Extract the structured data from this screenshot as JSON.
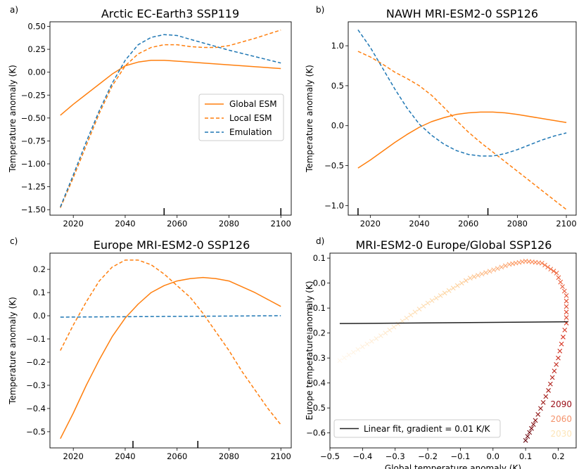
{
  "chart_data": [
    {
      "panel": "a)",
      "type": "line",
      "title": "Arctic EC-Earth3 SSP119",
      "xlabel": "",
      "ylabel": "Temperature anomaly (K)",
      "xlim": [
        2011,
        2104
      ],
      "ylim": [
        -1.56,
        0.55
      ],
      "xticks": [
        2020,
        2040,
        2060,
        2080,
        2100
      ],
      "yticks": [
        -1.5,
        -1.25,
        -1.0,
        -0.75,
        -0.5,
        -0.25,
        0.0,
        0.25,
        0.5
      ],
      "ytick_labels": [
        "−1.50",
        "−1.25",
        "−1.00",
        "−0.75",
        "−0.50",
        "−0.25",
        "0.00",
        "0.25",
        "0.50"
      ],
      "legend": {
        "placement": "center-right",
        "entries": [
          "Global ESM",
          "Local ESM",
          "Emulation"
        ]
      },
      "markers": [
        2055,
        2100
      ],
      "series": [
        {
          "name": "Global ESM",
          "color": "#ff7f0e",
          "dash": "solid",
          "x": [
            2015,
            2020,
            2025,
            2030,
            2035,
            2040,
            2045,
            2050,
            2055,
            2060,
            2065,
            2070,
            2080,
            2090,
            2100
          ],
          "y": [
            -0.47,
            -0.35,
            -0.24,
            -0.13,
            -0.02,
            0.07,
            0.11,
            0.13,
            0.13,
            0.12,
            0.11,
            0.1,
            0.08,
            0.06,
            0.04
          ]
        },
        {
          "name": "Local ESM",
          "color": "#ff7f0e",
          "dash": "dashed",
          "x": [
            2015,
            2020,
            2025,
            2030,
            2035,
            2040,
            2045,
            2050,
            2055,
            2060,
            2065,
            2070,
            2075,
            2080,
            2090,
            2100
          ],
          "y": [
            -1.48,
            -1.15,
            -0.8,
            -0.45,
            -0.15,
            0.07,
            0.2,
            0.27,
            0.3,
            0.3,
            0.28,
            0.27,
            0.27,
            0.29,
            0.37,
            0.46
          ]
        },
        {
          "name": "Emulation",
          "color": "#1f77b4",
          "dash": "dashed",
          "x": [
            2015,
            2020,
            2025,
            2030,
            2035,
            2040,
            2045,
            2050,
            2055,
            2060,
            2065,
            2070,
            2080,
            2090,
            2100
          ],
          "y": [
            -1.47,
            -1.12,
            -0.76,
            -0.42,
            -0.12,
            0.13,
            0.3,
            0.38,
            0.41,
            0.4,
            0.36,
            0.32,
            0.24,
            0.17,
            0.1
          ]
        }
      ]
    },
    {
      "panel": "b)",
      "type": "line",
      "title": "NAWH MRI-ESM2-0 SSP126",
      "xlabel": "",
      "ylabel": "Temperature anomaly (K)",
      "xlim": [
        2011,
        2104
      ],
      "ylim": [
        -1.12,
        1.3
      ],
      "xticks": [
        2020,
        2040,
        2060,
        2080,
        2100
      ],
      "yticks": [
        -1.0,
        -0.5,
        0.0,
        0.5,
        1.0
      ],
      "ytick_labels": [
        "−1.0",
        "−0.5",
        "0.0",
        "0.5",
        "1.0"
      ],
      "markers": [
        2015,
        2068
      ],
      "series": [
        {
          "name": "Global ESM",
          "color": "#ff7f0e",
          "dash": "solid",
          "x": [
            2015,
            2020,
            2025,
            2030,
            2035,
            2040,
            2045,
            2050,
            2055,
            2060,
            2065,
            2070,
            2075,
            2080,
            2090,
            2100
          ],
          "y": [
            -0.53,
            -0.43,
            -0.32,
            -0.21,
            -0.11,
            -0.02,
            0.05,
            0.1,
            0.14,
            0.16,
            0.17,
            0.17,
            0.16,
            0.14,
            0.09,
            0.04
          ]
        },
        {
          "name": "Local ESM",
          "color": "#ff7f0e",
          "dash": "dashed",
          "x": [
            2015,
            2020,
            2025,
            2030,
            2035,
            2040,
            2045,
            2050,
            2055,
            2060,
            2065,
            2070,
            2075,
            2080,
            2085,
            2090,
            2095,
            2100
          ],
          "y": [
            0.93,
            0.86,
            0.77,
            0.67,
            0.59,
            0.5,
            0.38,
            0.23,
            0.07,
            -0.08,
            -0.21,
            -0.33,
            -0.45,
            -0.57,
            -0.69,
            -0.81,
            -0.93,
            -1.05
          ]
        },
        {
          "name": "Emulation",
          "color": "#1f77b4",
          "dash": "dashed",
          "x": [
            2015,
            2020,
            2025,
            2030,
            2035,
            2040,
            2045,
            2050,
            2055,
            2060,
            2065,
            2070,
            2075,
            2080,
            2085,
            2090,
            2095,
            2100
          ],
          "y": [
            1.2,
            0.98,
            0.72,
            0.46,
            0.22,
            0.02,
            -0.12,
            -0.23,
            -0.31,
            -0.36,
            -0.38,
            -0.38,
            -0.35,
            -0.3,
            -0.24,
            -0.18,
            -0.13,
            -0.09
          ]
        }
      ]
    },
    {
      "panel": "c)",
      "type": "line",
      "title": "Europe MRI-ESM2-0 SSP126",
      "xlabel": "",
      "ylabel": "Temperature anomaly (K)",
      "xlim": [
        2011,
        2104
      ],
      "ylim": [
        -0.57,
        0.27
      ],
      "xticks": [
        2020,
        2040,
        2060,
        2080,
        2100
      ],
      "yticks": [
        -0.5,
        -0.4,
        -0.3,
        -0.2,
        -0.1,
        0.0,
        0.1,
        0.2
      ],
      "ytick_labels": [
        "−0.5",
        "−0.4",
        "−0.3",
        "−0.2",
        "−0.1",
        "0.0",
        "0.1",
        "0.2"
      ],
      "markers": [
        2043,
        2068
      ],
      "series": [
        {
          "name": "Global ESM",
          "color": "#ff7f0e",
          "dash": "solid",
          "x": [
            2015,
            2020,
            2025,
            2030,
            2035,
            2040,
            2045,
            2050,
            2055,
            2060,
            2065,
            2070,
            2075,
            2080,
            2090,
            2100
          ],
          "y": [
            -0.53,
            -0.42,
            -0.3,
            -0.19,
            -0.09,
            -0.01,
            0.05,
            0.1,
            0.13,
            0.15,
            0.16,
            0.165,
            0.16,
            0.15,
            0.1,
            0.04
          ]
        },
        {
          "name": "Local ESM",
          "color": "#ff7f0e",
          "dash": "dashed",
          "x": [
            2015,
            2020,
            2025,
            2030,
            2035,
            2040,
            2045,
            2050,
            2055,
            2060,
            2065,
            2070,
            2075,
            2080,
            2085,
            2090,
            2095,
            2100
          ],
          "y": [
            -0.15,
            -0.04,
            0.06,
            0.15,
            0.21,
            0.24,
            0.24,
            0.22,
            0.18,
            0.13,
            0.08,
            0.01,
            -0.07,
            -0.15,
            -0.24,
            -0.32,
            -0.4,
            -0.47
          ]
        },
        {
          "name": "Emulation",
          "color": "#1f77b4",
          "dash": "dashed",
          "x": [
            2015,
            2100
          ],
          "y": [
            -0.006,
            0.0
          ]
        }
      ]
    },
    {
      "panel": "d)",
      "type": "scatter",
      "title": "MRI-ESM2-0 Europe/Global SSP126",
      "xlabel": "Global temperature anomaly (K)",
      "ylabel": "Europe temperature anomaly (K)",
      "xlim": [
        -0.5,
        0.255
      ],
      "ylim": [
        -0.66,
        0.12
      ],
      "xticks": [
        -0.5,
        -0.4,
        -0.3,
        -0.2,
        -0.1,
        0.0,
        0.1,
        0.2
      ],
      "xtick_labels": [
        "−0.5",
        "−0.4",
        "−0.3",
        "−0.2",
        "−0.1",
        "0.0",
        "0.1",
        "0.2"
      ],
      "yticks": [
        -0.6,
        -0.5,
        -0.4,
        -0.3,
        -0.2,
        -0.1,
        0.0,
        0.1
      ],
      "ytick_labels": [
        "−0.6",
        "−0.5",
        "−0.4",
        "−0.3",
        "−0.2",
        "−0.1",
        "0.0",
        "0.1"
      ],
      "fit": {
        "label": "Linear fit, gradient = 0.01 K/K",
        "x": [
          -0.47,
          0.23
        ],
        "y": [
          -0.162,
          -0.155
        ],
        "color": "#222222"
      },
      "year_labels": [
        {
          "text": "2090",
          "color": "#9b0d16"
        },
        {
          "text": "2060",
          "color": "#f4936c"
        },
        {
          "text": "2030",
          "color": "#fde5b8"
        }
      ],
      "trajectory": [
        {
          "year": 2015,
          "x": -0.47,
          "y": -0.31
        },
        {
          "year": 2025,
          "x": -0.33,
          "y": -0.2
        },
        {
          "year": 2035,
          "x": -0.2,
          "y": -0.08
        },
        {
          "year": 2045,
          "x": -0.07,
          "y": 0.02
        },
        {
          "year": 2055,
          "x": 0.05,
          "y": 0.075
        },
        {
          "year": 2060,
          "x": 0.1,
          "y": 0.088
        },
        {
          "year": 2065,
          "x": 0.15,
          "y": 0.08
        },
        {
          "year": 2070,
          "x": 0.195,
          "y": 0.04
        },
        {
          "year": 2075,
          "x": 0.225,
          "y": -0.05
        },
        {
          "year": 2080,
          "x": 0.225,
          "y": -0.16
        },
        {
          "year": 2085,
          "x": 0.2,
          "y": -0.3
        },
        {
          "year": 2090,
          "x": 0.17,
          "y": -0.43
        },
        {
          "year": 2095,
          "x": 0.13,
          "y": -0.55
        },
        {
          "year": 2100,
          "x": 0.1,
          "y": -0.63
        }
      ]
    }
  ]
}
